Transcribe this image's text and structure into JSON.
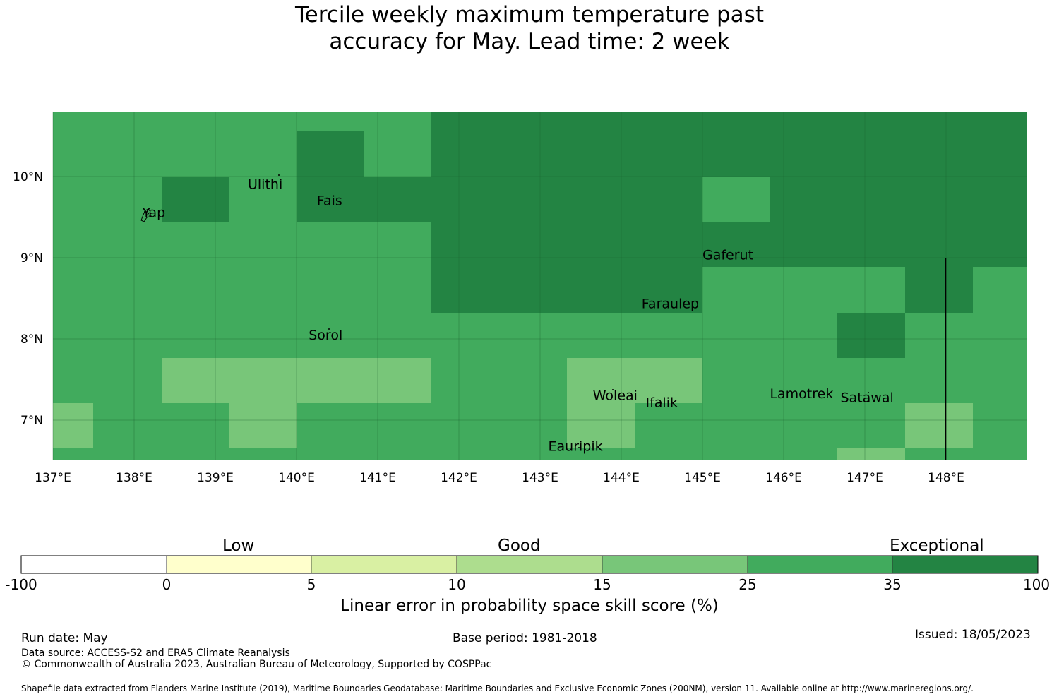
{
  "title_line1": "Tercile weekly maximum temperature past",
  "title_line2": "accuracy for May. Lead time: 2 week",
  "map": {
    "lon_range": [
      137,
      149
    ],
    "lat_range": [
      6.5,
      10.8
    ],
    "lon_ticks": [
      "137°E",
      "138°E",
      "139°E",
      "140°E",
      "141°E",
      "142°E",
      "143°E",
      "144°E",
      "145°E",
      "146°E",
      "147°E",
      "148°E"
    ],
    "lat_ticks": [
      "10°N",
      "9°N",
      "8°N",
      "7°N"
    ],
    "places": [
      {
        "name": "Yap",
        "lon": 138.1,
        "lat": 9.5
      },
      {
        "name": "Ulithi",
        "lon": 139.4,
        "lat": 9.85
      },
      {
        "name": "Fais",
        "lon": 140.25,
        "lat": 9.65
      },
      {
        "name": "Gaferut",
        "lon": 145.0,
        "lat": 8.98
      },
      {
        "name": "Faraulep",
        "lon": 144.25,
        "lat": 8.38
      },
      {
        "name": "Sorol",
        "lon": 140.15,
        "lat": 7.99
      },
      {
        "name": "Woleai",
        "lon": 143.65,
        "lat": 7.25
      },
      {
        "name": "Ifalik",
        "lon": 144.3,
        "lat": 7.16
      },
      {
        "name": "Lamotrek",
        "lon": 145.83,
        "lat": 7.27
      },
      {
        "name": "Satawal",
        "lon": 146.7,
        "lat": 7.22
      },
      {
        "name": "Eauripik",
        "lon": 143.1,
        "lat": 6.62
      }
    ],
    "colors": {
      "c15": "#78c679",
      "c25": "#41ab5d",
      "c35": "#238443"
    }
  },
  "colorbar": {
    "categories": [
      "Low",
      "Good",
      "Exceptional"
    ],
    "ticks": [
      "-100",
      "0",
      "5",
      "10",
      "15",
      "25",
      "35",
      "100"
    ],
    "colors": [
      "#ffffff",
      "#ffffcc",
      "#d9f0a3",
      "#addd8e",
      "#78c679",
      "#41ab5d",
      "#238443"
    ],
    "title": "Linear error in probability space skill score (%)"
  },
  "footer": {
    "run_date": "Run date: May",
    "base_period": "Base period: 1981-2018",
    "issued": "Issued: 18/05/2023",
    "data_source": "Data source: ACCESS-S2 and ERA5 Climate Reanalysis",
    "copyright": "© Commonwealth of Australia 2023, Australian Bureau of Meteorology, Supported by COSPPac",
    "shapefile": "Shapefile data extracted from Flanders Marine Institute (2019), Maritime Boundaries Geodatabase: Maritime Boundaries and Exclusive Economic Zones (200NM), version 11. Available online at http://www.marineregions.org/."
  }
}
